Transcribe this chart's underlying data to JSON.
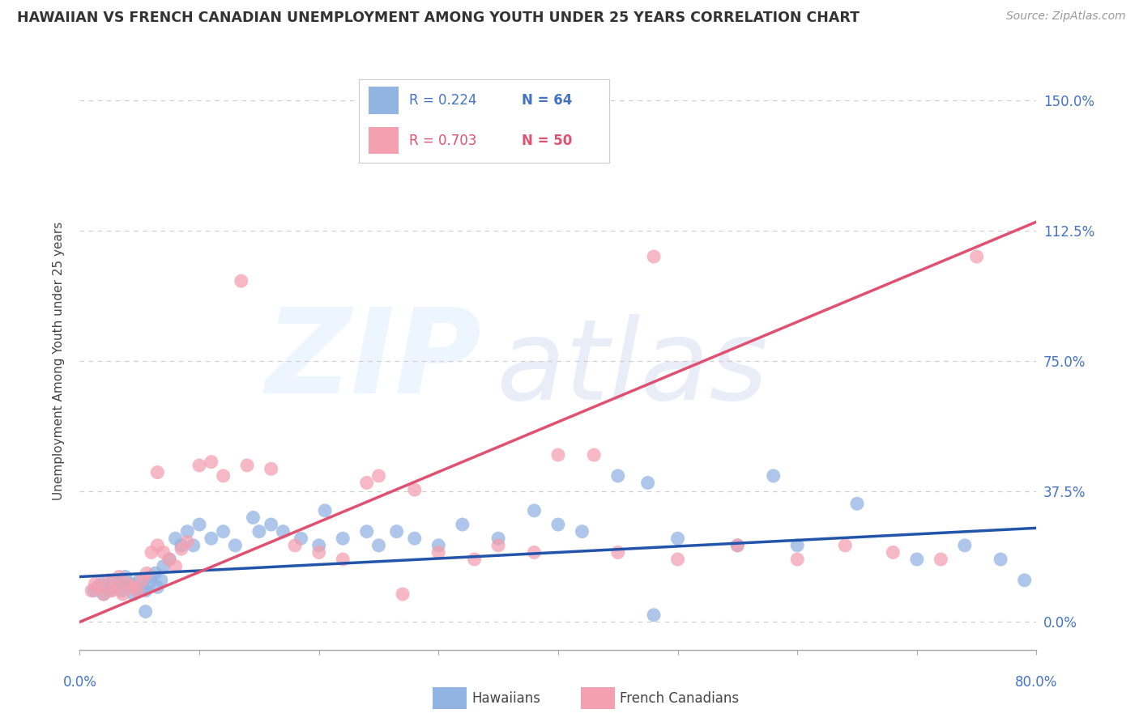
{
  "title": "HAWAIIAN VS FRENCH CANADIAN UNEMPLOYMENT AMONG YOUTH UNDER 25 YEARS CORRELATION CHART",
  "source": "Source: ZipAtlas.com",
  "ylabel": "Unemployment Among Youth under 25 years",
  "ytick_values": [
    0.0,
    37.5,
    75.0,
    112.5,
    150.0
  ],
  "xlim": [
    0.0,
    80.0
  ],
  "ylim": [
    -8.0,
    158.0
  ],
  "legend_R_hawaiian": "R = 0.224",
  "legend_N_hawaiian": "N = 64",
  "legend_R_french": "R = 0.703",
  "legend_N_french": "N = 50",
  "hawaiian_color": "#92b4e3",
  "french_color": "#f4a0b0",
  "hawaiian_line_color": "#2255aa",
  "french_line_color": "#e05070",
  "ytick_color": "#4472c4",
  "background_color": "#ffffff",
  "grid_color": "#cccccc",
  "hawaiian_scatter_x": [
    1.2,
    1.5,
    1.8,
    2.0,
    2.2,
    2.5,
    2.8,
    3.0,
    3.2,
    3.5,
    3.8,
    4.0,
    4.3,
    4.5,
    4.8,
    5.0,
    5.3,
    5.5,
    5.8,
    6.0,
    6.3,
    6.5,
    6.8,
    7.0,
    7.5,
    8.0,
    8.5,
    9.0,
    9.5,
    10.0,
    11.0,
    12.0,
    13.0,
    14.5,
    15.0,
    16.0,
    17.0,
    18.5,
    20.0,
    22.0,
    24.0,
    25.0,
    26.5,
    28.0,
    30.0,
    32.0,
    35.0,
    38.0,
    40.0,
    42.0,
    45.0,
    47.5,
    50.0,
    55.0,
    58.0,
    60.0,
    65.0,
    70.0,
    74.0,
    77.0,
    79.0,
    48.0,
    5.5,
    20.5
  ],
  "hawaiian_scatter_y": [
    9.0,
    10.0,
    11.0,
    8.0,
    10.0,
    9.0,
    12.0,
    10.0,
    11.0,
    9.0,
    13.0,
    10.0,
    11.0,
    8.0,
    9.0,
    12.0,
    10.0,
    9.0,
    11.0,
    13.0,
    14.0,
    10.0,
    12.0,
    16.0,
    18.0,
    24.0,
    22.0,
    26.0,
    22.0,
    28.0,
    24.0,
    26.0,
    22.0,
    30.0,
    26.0,
    28.0,
    26.0,
    24.0,
    22.0,
    24.0,
    26.0,
    22.0,
    26.0,
    24.0,
    22.0,
    28.0,
    24.0,
    32.0,
    28.0,
    26.0,
    42.0,
    40.0,
    24.0,
    22.0,
    42.0,
    22.0,
    34.0,
    18.0,
    22.0,
    18.0,
    12.0,
    2.0,
    3.0,
    32.0
  ],
  "french_scatter_x": [
    1.0,
    1.3,
    1.6,
    2.0,
    2.4,
    2.7,
    3.0,
    3.3,
    3.6,
    4.0,
    4.4,
    4.8,
    5.2,
    5.6,
    6.0,
    6.5,
    7.0,
    7.5,
    8.0,
    8.5,
    9.0,
    10.0,
    11.0,
    12.0,
    14.0,
    16.0,
    18.0,
    20.0,
    22.0,
    24.0,
    25.0,
    28.0,
    30.0,
    33.0,
    35.0,
    38.0,
    40.0,
    43.0,
    45.0,
    48.0,
    50.0,
    55.0,
    60.0,
    64.0,
    68.0,
    72.0,
    6.5,
    13.5,
    27.0,
    75.0
  ],
  "french_scatter_y": [
    9.0,
    11.0,
    10.0,
    8.0,
    12.0,
    9.0,
    10.0,
    13.0,
    8.0,
    11.0,
    10.0,
    9.0,
    12.0,
    14.0,
    20.0,
    22.0,
    20.0,
    18.0,
    16.0,
    21.0,
    23.0,
    45.0,
    46.0,
    42.0,
    45.0,
    44.0,
    22.0,
    20.0,
    18.0,
    40.0,
    42.0,
    38.0,
    20.0,
    18.0,
    22.0,
    20.0,
    48.0,
    48.0,
    20.0,
    105.0,
    18.0,
    22.0,
    18.0,
    22.0,
    20.0,
    18.0,
    43.0,
    98.0,
    8.0,
    105.0
  ],
  "hawaiian_trend_x": [
    0.0,
    80.0
  ],
  "hawaiian_trend_y": [
    13.0,
    27.0
  ],
  "french_trend_x": [
    0.0,
    80.0
  ],
  "french_trend_y": [
    0.0,
    115.0
  ]
}
